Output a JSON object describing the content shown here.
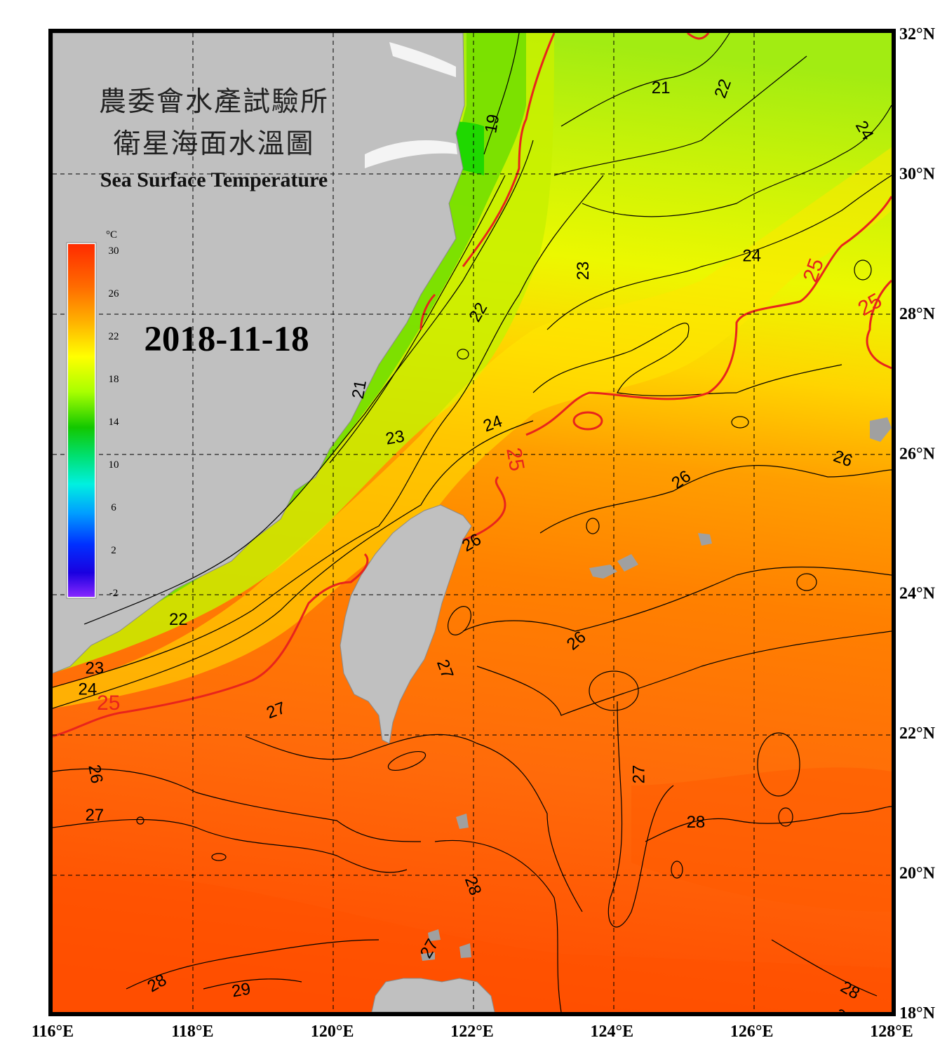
{
  "title": {
    "line1": "農委會水產試驗所",
    "line2": "衛星海面水溫圖",
    "english": "Sea Surface Temperature"
  },
  "date": "2018-11-18",
  "colorbar": {
    "unit": "°C",
    "ticks": [
      "30",
      "26",
      "22",
      "18",
      "14",
      "10",
      "6",
      "2",
      "-2"
    ]
  },
  "axes": {
    "longitude_labels": [
      "116°E",
      "118°E",
      "120°E",
      "122°E",
      "124°E",
      "126°E",
      "128°E"
    ],
    "latitude_labels": [
      "32°N",
      "30°N",
      "28°N",
      "26°N",
      "24°N",
      "22°N",
      "20°N",
      "18°N"
    ]
  },
  "contour_labels": [
    {
      "text": "21",
      "lon": 124.7,
      "lat": 31.2,
      "rot": 0,
      "kind": "black"
    },
    {
      "text": "22",
      "lon": 125.6,
      "lat": 31.2,
      "rot": -70,
      "kind": "black"
    },
    {
      "text": "24",
      "lon": 127.6,
      "lat": 30.6,
      "rot": 60,
      "kind": "black"
    },
    {
      "text": "19",
      "lon": 122.3,
      "lat": 30.7,
      "rot": -80,
      "kind": "black"
    },
    {
      "text": "24",
      "lon": 126.0,
      "lat": 28.8,
      "rot": 0,
      "kind": "black"
    },
    {
      "text": "25",
      "lon": 126.9,
      "lat": 28.6,
      "rot": -70,
      "kind": "red"
    },
    {
      "text": "25",
      "lon": 127.7,
      "lat": 28.1,
      "rot": -30,
      "kind": "red"
    },
    {
      "text": "23",
      "lon": 123.6,
      "lat": 28.6,
      "rot": -90,
      "kind": "black"
    },
    {
      "text": "22",
      "lon": 122.1,
      "lat": 28.0,
      "rot": -60,
      "kind": "black"
    },
    {
      "text": "21",
      "lon": 120.4,
      "lat": 26.9,
      "rot": -80,
      "kind": "black"
    },
    {
      "text": "23",
      "lon": 120.9,
      "lat": 26.2,
      "rot": -10,
      "kind": "black"
    },
    {
      "text": "24",
      "lon": 122.3,
      "lat": 26.4,
      "rot": -20,
      "kind": "black"
    },
    {
      "text": "25",
      "lon": 122.6,
      "lat": 25.9,
      "rot": 80,
      "kind": "red"
    },
    {
      "text": "26",
      "lon": 125.0,
      "lat": 25.6,
      "rot": -35,
      "kind": "black"
    },
    {
      "text": "26",
      "lon": 127.3,
      "lat": 25.9,
      "rot": 20,
      "kind": "black"
    },
    {
      "text": "26",
      "lon": 122.0,
      "lat": 24.7,
      "rot": -30,
      "kind": "black"
    },
    {
      "text": "22",
      "lon": 117.8,
      "lat": 23.6,
      "rot": 0,
      "kind": "black"
    },
    {
      "text": "26",
      "lon": 123.5,
      "lat": 23.3,
      "rot": -40,
      "kind": "black"
    },
    {
      "text": "27",
      "lon": 121.6,
      "lat": 22.9,
      "rot": 70,
      "kind": "black"
    },
    {
      "text": "23",
      "lon": 116.6,
      "lat": 22.9,
      "rot": 0,
      "kind": "black"
    },
    {
      "text": "24",
      "lon": 116.5,
      "lat": 22.6,
      "rot": 0,
      "kind": "black"
    },
    {
      "text": "25",
      "lon": 116.8,
      "lat": 22.4,
      "rot": 0,
      "kind": "red"
    },
    {
      "text": "27",
      "lon": 119.2,
      "lat": 22.3,
      "rot": -20,
      "kind": "black"
    },
    {
      "text": "26",
      "lon": 116.6,
      "lat": 21.4,
      "rot": 80,
      "kind": "black"
    },
    {
      "text": "27",
      "lon": 124.4,
      "lat": 21.4,
      "rot": -90,
      "kind": "black"
    },
    {
      "text": "27",
      "lon": 116.6,
      "lat": 20.8,
      "rot": 0,
      "kind": "black"
    },
    {
      "text": "28",
      "lon": 125.2,
      "lat": 20.7,
      "rot": 0,
      "kind": "black"
    },
    {
      "text": "28",
      "lon": 122.0,
      "lat": 19.8,
      "rot": 70,
      "kind": "black"
    },
    {
      "text": "27",
      "lon": 121.4,
      "lat": 18.9,
      "rot": -60,
      "kind": "black"
    },
    {
      "text": "28",
      "lon": 117.5,
      "lat": 18.4,
      "rot": -30,
      "kind": "black"
    },
    {
      "text": "29",
      "lon": 118.7,
      "lat": 18.3,
      "rot": -10,
      "kind": "black"
    },
    {
      "text": "28",
      "lon": 127.4,
      "lat": 18.3,
      "rot": 30,
      "kind": "black"
    },
    {
      "text": "28",
      "lon": 127.3,
      "lat": 17.9,
      "rot": 40,
      "kind": "black"
    }
  ],
  "colors": {
    "land": "#c0c0c0",
    "warm_contour": "#e8241c",
    "frame": "#000000"
  }
}
